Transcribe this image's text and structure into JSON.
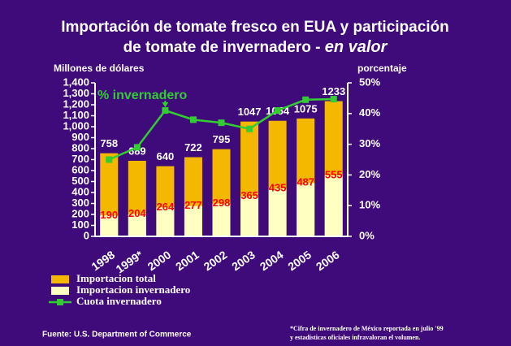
{
  "chart_data": {
    "type": "bar",
    "title_lines": [
      "Importación de tomate fresco en EUA y participación",
      "de tomate de invernadero - "
    ],
    "title_emphasis": "en valor",
    "y_label": "Millones de dólares",
    "y2_label": "porcentaje",
    "annotation": "% invernadero",
    "categories": [
      "1998",
      "1999*",
      "2000",
      "2001",
      "2002",
      "2003",
      "2004",
      "2005",
      "2006"
    ],
    "series": [
      {
        "name": "Importacion total",
        "color": "#f5b800",
        "values": [
          758,
          689,
          640,
          722,
          795,
          1047,
          1054,
          1075,
          1233
        ]
      },
      {
        "name": "Importacion invernadero",
        "color": "#ffffc0",
        "values": [
          190,
          204,
          264,
          277,
          298,
          365,
          435,
          487,
          555
        ]
      },
      {
        "name": "Cuota invernadero",
        "color": "#33cc33",
        "axis": "y2",
        "values": [
          25,
          29,
          41,
          38,
          37,
          35,
          41,
          44.5,
          44.7
        ]
      }
    ],
    "ylim": [
      0,
      1400
    ],
    "yticks": [
      0,
      100,
      200,
      300,
      400,
      500,
      600,
      700,
      800,
      900,
      {
        "value": 1000,
        "label": "1,000"
      },
      {
        "value": 1100,
        "label": "1,100"
      },
      {
        "value": 1200,
        "label": "1,200"
      },
      {
        "value": 1300,
        "label": "1,300"
      },
      {
        "value": 1400,
        "label": "1,400"
      }
    ],
    "y2lim": [
      0,
      50
    ],
    "y2ticks": [
      {
        "value": 0,
        "label": "0%"
      },
      {
        "value": 10,
        "label": "10%"
      },
      {
        "value": 20,
        "label": "20%"
      },
      {
        "value": 30,
        "label": "30%"
      },
      {
        "value": 40,
        "label": "40%"
      },
      {
        "value": 50,
        "label": "50%"
      }
    ],
    "source": "Fuente:  U.S. Department of Commerce",
    "note_lines": [
      "*Cifra de invernadero de México reportada en julio '99",
      "y estadísticas oficiales infravaloran el volumen."
    ]
  }
}
